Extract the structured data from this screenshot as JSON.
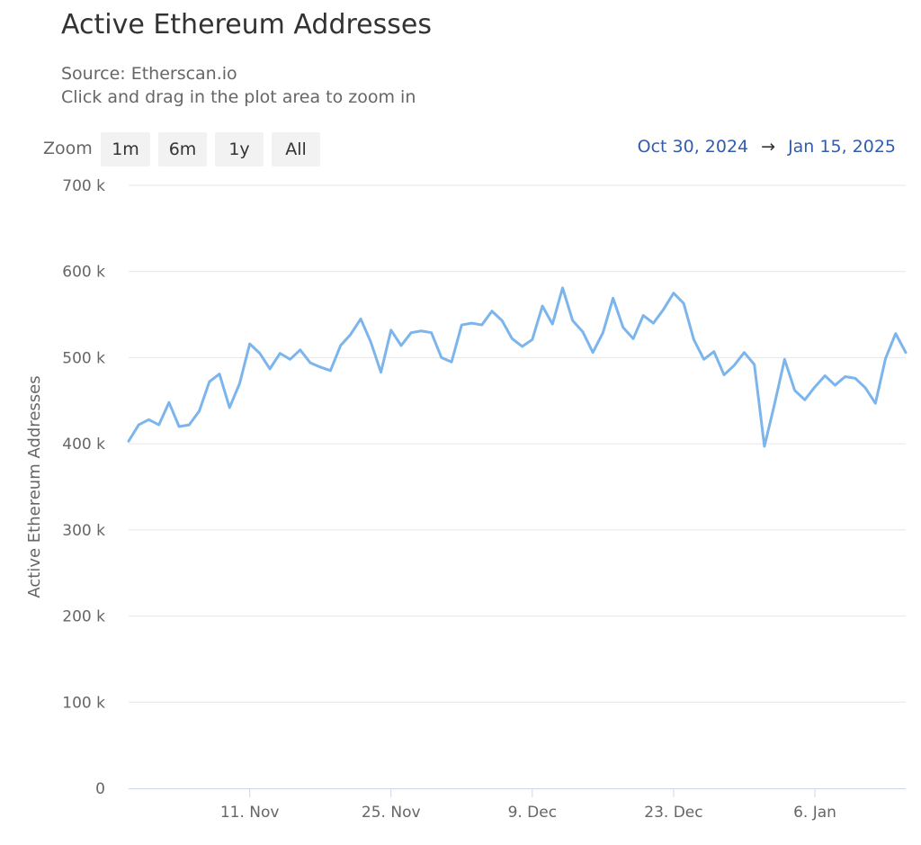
{
  "title": "Active Ethereum Addresses",
  "subtitle_lines": [
    "Source: Etherscan.io",
    "Click and drag in the plot area to zoom in"
  ],
  "zoom": {
    "label": "Zoom",
    "buttons": [
      "1m",
      "6m",
      "1y",
      "All"
    ]
  },
  "range": {
    "from": "Oct 30, 2024",
    "arrow": "→",
    "to": "Jan 15, 2025"
  },
  "colors": {
    "series": "#7cb5ec",
    "grid": "#e6e6e6",
    "axis_line": "#ccd6eb",
    "range_text": "#335cad"
  },
  "chart_data": {
    "type": "line",
    "ylabel": "Active Ethereum Addresses",
    "ylim": [
      0,
      700000
    ],
    "yticks": [
      0,
      100000,
      200000,
      300000,
      400000,
      500000,
      600000,
      700000
    ],
    "ytick_labels": [
      "0",
      "100 k",
      "200 k",
      "300 k",
      "400 k",
      "500 k",
      "600 k",
      "700 k"
    ],
    "xlim": [
      "2024-10-30",
      "2025-01-15"
    ],
    "xticks": [
      "2024-11-11",
      "2024-11-25",
      "2024-12-09",
      "2024-12-23",
      "2025-01-06"
    ],
    "xtick_labels": [
      "11. Nov",
      "25. Nov",
      "9. Dec",
      "23. Dec",
      "6. Jan"
    ],
    "grid": true,
    "series": [
      {
        "points": [
          [
            "2024-10-30",
            403000
          ],
          [
            "2024-10-31",
            422000
          ],
          [
            "2024-11-01",
            428000
          ],
          [
            "2024-11-02",
            422000
          ],
          [
            "2024-11-03",
            448000
          ],
          [
            "2024-11-04",
            420000
          ],
          [
            "2024-11-05",
            422000
          ],
          [
            "2024-11-06",
            438000
          ],
          [
            "2024-11-07",
            472000
          ],
          [
            "2024-11-08",
            481000
          ],
          [
            "2024-11-09",
            442000
          ],
          [
            "2024-11-10",
            470000
          ],
          [
            "2024-11-11",
            516000
          ],
          [
            "2024-11-12",
            505000
          ],
          [
            "2024-11-13",
            487000
          ],
          [
            "2024-11-14",
            505000
          ],
          [
            "2024-11-15",
            498000
          ],
          [
            "2024-11-16",
            509000
          ],
          [
            "2024-11-17",
            494000
          ],
          [
            "2024-11-18",
            489000
          ],
          [
            "2024-11-19",
            485000
          ],
          [
            "2024-11-20",
            514000
          ],
          [
            "2024-11-21",
            527000
          ],
          [
            "2024-11-22",
            545000
          ],
          [
            "2024-11-23",
            518000
          ],
          [
            "2024-11-24",
            483000
          ],
          [
            "2024-11-25",
            532000
          ],
          [
            "2024-11-26",
            514000
          ],
          [
            "2024-11-27",
            529000
          ],
          [
            "2024-11-28",
            531000
          ],
          [
            "2024-11-29",
            529000
          ],
          [
            "2024-11-30",
            500000
          ],
          [
            "2024-12-01",
            495000
          ],
          [
            "2024-12-02",
            538000
          ],
          [
            "2024-12-03",
            540000
          ],
          [
            "2024-12-04",
            538000
          ],
          [
            "2024-12-05",
            554000
          ],
          [
            "2024-12-06",
            543000
          ],
          [
            "2024-12-07",
            522000
          ],
          [
            "2024-12-08",
            513000
          ],
          [
            "2024-12-09",
            521000
          ],
          [
            "2024-12-10",
            560000
          ],
          [
            "2024-12-11",
            539000
          ],
          [
            "2024-12-12",
            581000
          ],
          [
            "2024-12-13",
            543000
          ],
          [
            "2024-12-14",
            530000
          ],
          [
            "2024-12-15",
            506000
          ],
          [
            "2024-12-16",
            529000
          ],
          [
            "2024-12-17",
            569000
          ],
          [
            "2024-12-18",
            535000
          ],
          [
            "2024-12-19",
            522000
          ],
          [
            "2024-12-20",
            549000
          ],
          [
            "2024-12-21",
            540000
          ],
          [
            "2024-12-22",
            556000
          ],
          [
            "2024-12-23",
            575000
          ],
          [
            "2024-12-24",
            563000
          ],
          [
            "2024-12-25",
            521000
          ],
          [
            "2024-12-26",
            498000
          ],
          [
            "2024-12-27",
            507000
          ],
          [
            "2024-12-28",
            480000
          ],
          [
            "2024-12-29",
            491000
          ],
          [
            "2024-12-30",
            506000
          ],
          [
            "2024-12-31",
            492000
          ],
          [
            "2025-01-01",
            397000
          ],
          [
            "2025-01-02",
            446000
          ],
          [
            "2025-01-03",
            498000
          ],
          [
            "2025-01-04",
            462000
          ],
          [
            "2025-01-05",
            451000
          ],
          [
            "2025-01-06",
            466000
          ],
          [
            "2025-01-07",
            479000
          ],
          [
            "2025-01-08",
            468000
          ],
          [
            "2025-01-09",
            478000
          ],
          [
            "2025-01-10",
            476000
          ],
          [
            "2025-01-11",
            465000
          ],
          [
            "2025-01-12",
            447000
          ],
          [
            "2025-01-13",
            499000
          ],
          [
            "2025-01-14",
            528000
          ],
          [
            "2025-01-15",
            506000
          ]
        ]
      }
    ]
  }
}
